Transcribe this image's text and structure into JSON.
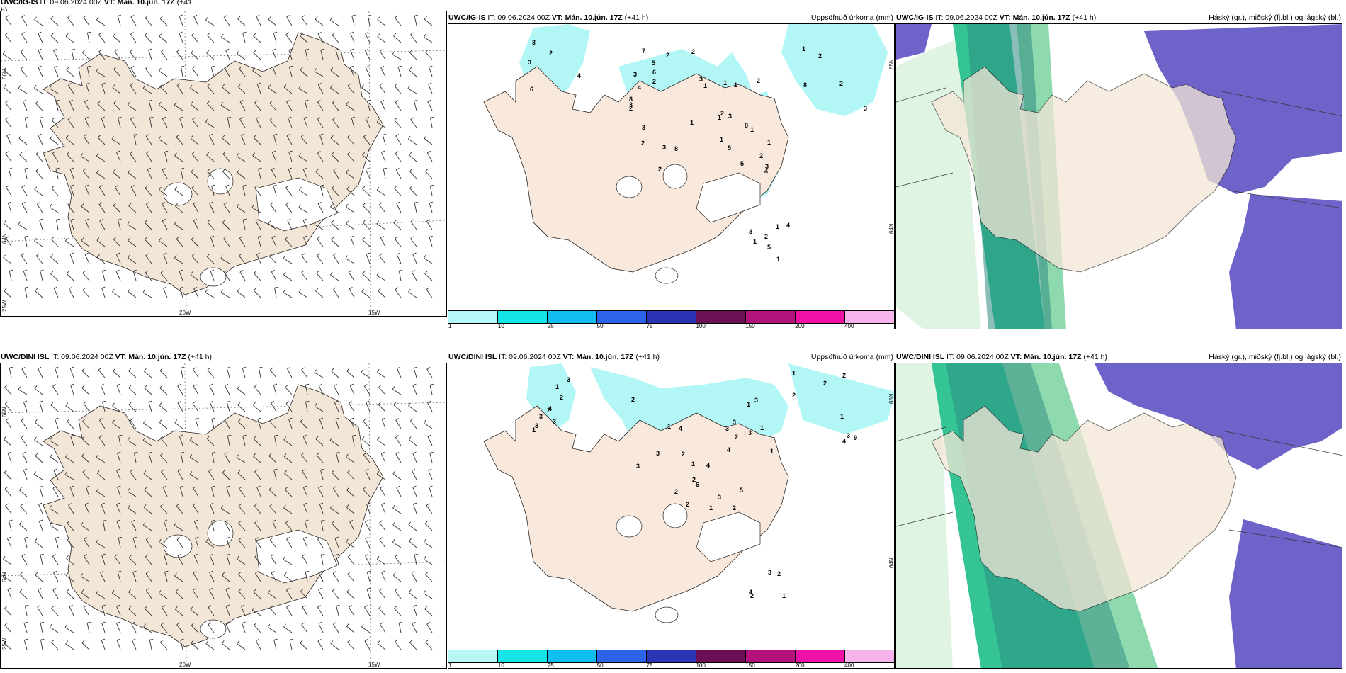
{
  "panels": [
    {
      "id": "igis-wind",
      "header": {
        "model": "UWC/IG-IS",
        "it": "IT: 09.06.2024 00Z",
        "vt": "VT: Mán. 10.jún. 17Z",
        "lead": "(+41",
        "lead2": "h)"
      },
      "right_label": "",
      "axis": {
        "lat1": "66N",
        "lat2": "64N",
        "lon1": "25W",
        "lon2": "20W",
        "lon3": "15W"
      }
    },
    {
      "id": "igis-precip",
      "header": {
        "model": "UWC/IG-IS",
        "it": "IT: 09.06.2024 00Z",
        "vt": "VT: Mán. 10.jún. 17Z",
        "lead": "(+41 h)"
      },
      "right_label": "Uppsöfnuð úrkoma (mm)",
      "axis": {
        "lat1": "65N",
        "lat2": "64N"
      },
      "precip_labels": [
        "2",
        "1",
        "2",
        "1",
        "1",
        "4",
        "1",
        "1",
        "2",
        "2",
        "1",
        "8",
        "2",
        "3",
        "6",
        "8",
        "8",
        "6",
        "8",
        "4",
        "4",
        "1",
        "3",
        "3",
        "5",
        "2",
        "2",
        "3",
        "3",
        "2",
        "3",
        "1",
        "2",
        "3",
        "3",
        "1",
        "2",
        "3",
        "5",
        "1",
        "1",
        "2",
        "4",
        "5",
        "3",
        "2",
        "7",
        "3",
        "2",
        "5",
        "1"
      ]
    },
    {
      "id": "igis-cloud",
      "header": {
        "model": "UWC/IG-IS",
        "it": "IT: 09.06.2024 00Z",
        "vt": "VT: Mán. 10.jún. 17Z",
        "lead": "(+41 h)"
      },
      "right_label": "Háský (gr.), miðský (fj.bl.) og lágský (bl.)"
    },
    {
      "id": "dini-wind",
      "header": {
        "model": "UWC/DINI ISL",
        "it": "IT: 09.06.2024 00Z",
        "vt": "VT: Mán. 10.jún. 17Z",
        "lead": "(+41 h)"
      },
      "right_label": "",
      "axis": {
        "lat1": "66N",
        "lat2": "64N",
        "lon1": "25W",
        "lon2": "20W",
        "lon3": "15W"
      }
    },
    {
      "id": "dini-precip",
      "header": {
        "model": "UWC/DINI ISL",
        "it": "IT: 09.06.2024 00Z",
        "vt": "VT: Mán. 10.jún. 17Z",
        "lead": "(+41 h)"
      },
      "right_label": "Uppsöfnuð úrkoma (mm)",
      "axis": {
        "lat1": "65N",
        "lat2": "64N"
      },
      "precip_labels": [
        "1",
        "3",
        "2",
        "3",
        "3",
        "1",
        "1",
        "2",
        "4",
        "2",
        "1",
        "3",
        "4",
        "5",
        "3",
        "9",
        "6",
        "3",
        "2",
        "2",
        "2",
        "3",
        "3",
        "3",
        "2",
        "1",
        "4",
        "2",
        "2",
        "2",
        "1",
        "2",
        "1",
        "2",
        "1",
        "3",
        "1",
        "1",
        "4",
        "4",
        "4",
        "2",
        "1",
        "3",
        "3",
        "3",
        "2"
      ]
    },
    {
      "id": "dini-cloud",
      "header": {
        "model": "UWC/DINI ISL",
        "it": "IT: 09.06.2024 00Z",
        "vt": "VT: Mán. 10.jún. 17Z",
        "lead": "(+41 h)"
      },
      "right_label": "Háský (gr.), miðský (fj.bl.) og lágský (bl.)"
    }
  ],
  "colorbar": {
    "labels": [
      "1",
      "10",
      "25",
      "50",
      "75",
      "100",
      "150",
      "200",
      "400"
    ],
    "colors": [
      "#b6f7f7",
      "#14e6e8",
      "#10bff0",
      "#2b63ea",
      "#2a34b5",
      "#6d0f56",
      "#b3127c",
      "#ef11a6",
      "#f7b3ec"
    ]
  },
  "colors": {
    "land": "#f4e6d6",
    "precip_light": "#b3f6f6",
    "cloud_high": "#1fbf8a",
    "cloud_mid": "#3a4fc4",
    "cloud_low": "#6e63c8"
  }
}
